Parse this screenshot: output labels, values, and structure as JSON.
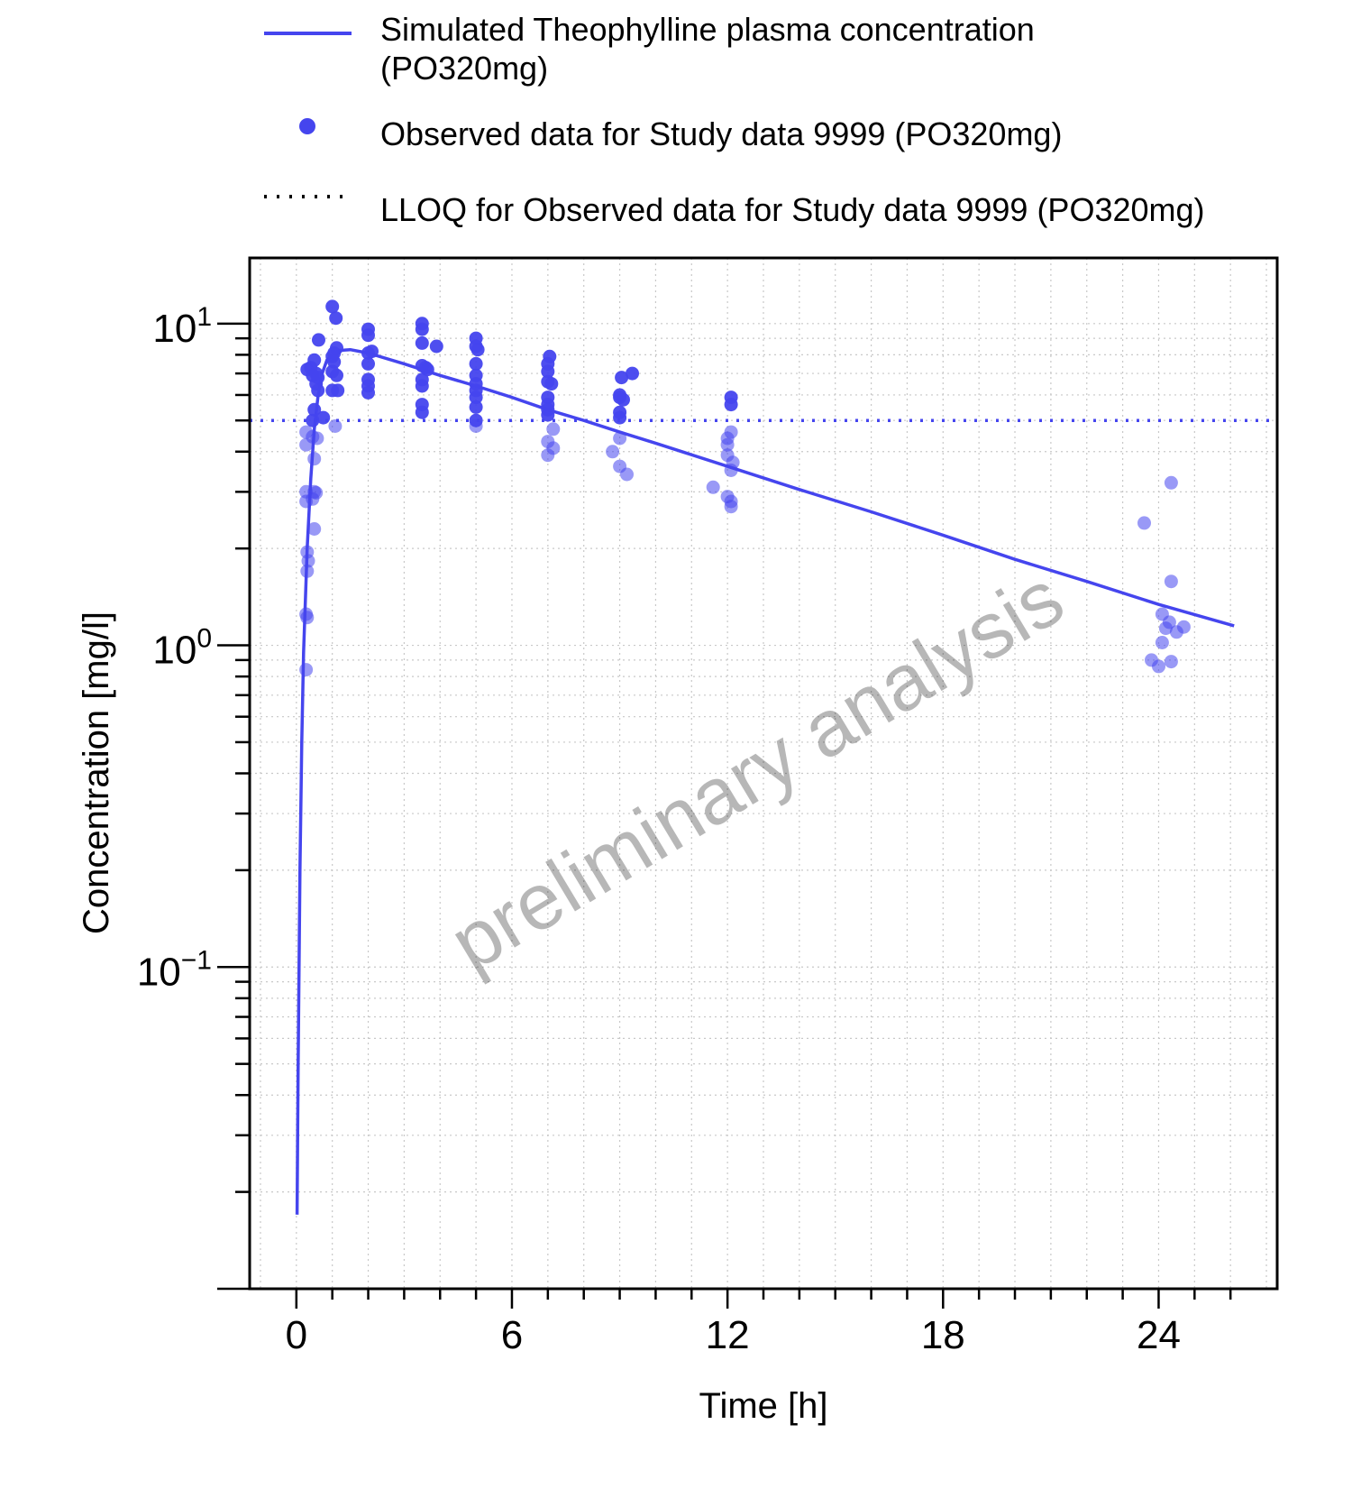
{
  "chart_data": {
    "type": "scatter",
    "title": "",
    "xlabel": "Time [h]",
    "ylabel": "Concentration [mg/l]",
    "xlim": [
      -1.3,
      27.3
    ],
    "ylim": [
      0.01,
      16
    ],
    "y_scale": "log",
    "x_ticks": [
      0,
      6,
      12,
      18,
      24
    ],
    "x_tick_labels": [
      "0",
      "6",
      "12",
      "18",
      "24"
    ],
    "y_ticks": [
      {
        "value": 10,
        "base": "10",
        "exp": "1"
      },
      {
        "value": 1,
        "base": "10",
        "exp": "0"
      },
      {
        "value": 0.1,
        "base": "10",
        "exp": "−1"
      }
    ],
    "grid": true,
    "legend_position": "top",
    "watermark": "preliminary analysis",
    "colors": {
      "series": "#4545ee",
      "axis": "#000000",
      "grid": "#c8c8c8"
    },
    "series": [
      {
        "name": "Simulated Theophylline plasma concentration\n(PO320mg)",
        "kind": "line",
        "legend_lines": [
          "Simulated Theophylline plasma concentration",
          "(PO320mg)"
        ],
        "points": [
          [
            0.02,
            0.017
          ],
          [
            0.05,
            0.05
          ],
          [
            0.1,
            0.2
          ],
          [
            0.15,
            0.5
          ],
          [
            0.2,
            0.95
          ],
          [
            0.3,
            2.0
          ],
          [
            0.4,
            3.3
          ],
          [
            0.5,
            4.7
          ],
          [
            0.6,
            5.9
          ],
          [
            0.7,
            6.9
          ],
          [
            0.85,
            7.7
          ],
          [
            1.0,
            8.0
          ],
          [
            1.2,
            8.25
          ],
          [
            1.5,
            8.3
          ],
          [
            2,
            8.1
          ],
          [
            3,
            7.5
          ],
          [
            4,
            6.9
          ],
          [
            5,
            6.4
          ],
          [
            6,
            5.9
          ],
          [
            7,
            5.4
          ],
          [
            8,
            5.0
          ],
          [
            9,
            4.6
          ],
          [
            10,
            4.25
          ],
          [
            12,
            3.6
          ],
          [
            14,
            3.05
          ],
          [
            16,
            2.6
          ],
          [
            18,
            2.2
          ],
          [
            20,
            1.85
          ],
          [
            22,
            1.58
          ],
          [
            24,
            1.34
          ],
          [
            26.1,
            1.15
          ]
        ]
      },
      {
        "name": "Observed data for Study data 9999 (PO320mg)",
        "kind": "points",
        "points": [
          [
            0.27,
            4.6
          ],
          [
            0.27,
            4.2
          ],
          [
            0.27,
            3.0
          ],
          [
            0.27,
            2.8
          ],
          [
            0.3,
            1.95
          ],
          [
            0.3,
            1.7
          ],
          [
            0.27,
            1.25
          ],
          [
            0.27,
            0.84
          ],
          [
            0.33,
            1.83
          ],
          [
            0.3,
            1.22
          ],
          [
            0.3,
            7.2
          ],
          [
            0.4,
            7.3
          ],
          [
            0.45,
            5.0
          ],
          [
            0.45,
            2.85
          ],
          [
            0.45,
            4.45
          ],
          [
            0.45,
            6.9
          ],
          [
            0.5,
            3.0
          ],
          [
            0.5,
            2.3
          ],
          [
            0.5,
            3.8
          ],
          [
            0.5,
            5.4
          ],
          [
            0.5,
            7.7
          ],
          [
            0.55,
            7.0
          ],
          [
            0.55,
            6.5
          ],
          [
            0.55,
            2.98
          ],
          [
            0.58,
            4.4
          ],
          [
            0.6,
            6.2
          ],
          [
            0.6,
            6.8
          ],
          [
            0.62,
            8.9
          ],
          [
            0.75,
            5.1
          ],
          [
            1.0,
            11.3
          ],
          [
            1.0,
            7.9
          ],
          [
            1.0,
            7.1
          ],
          [
            1.0,
            6.2
          ],
          [
            1.05,
            8.1
          ],
          [
            1.05,
            7.6
          ],
          [
            1.08,
            4.8
          ],
          [
            1.1,
            10.4
          ],
          [
            1.12,
            6.9
          ],
          [
            1.12,
            8.4
          ],
          [
            1.15,
            6.2
          ],
          [
            2.0,
            9.6
          ],
          [
            2.0,
            9.2
          ],
          [
            2.0,
            8.1
          ],
          [
            2.0,
            7.5
          ],
          [
            2.0,
            6.7
          ],
          [
            2.0,
            6.4
          ],
          [
            2.0,
            6.1
          ],
          [
            2.1,
            8.2
          ],
          [
            3.5,
            10.0
          ],
          [
            3.5,
            9.6
          ],
          [
            3.5,
            8.7
          ],
          [
            3.5,
            7.4
          ],
          [
            3.5,
            6.7
          ],
          [
            3.5,
            6.4
          ],
          [
            3.5,
            5.6
          ],
          [
            3.5,
            5.3
          ],
          [
            3.6,
            7.3
          ],
          [
            3.65,
            7.2
          ],
          [
            3.9,
            8.5
          ],
          [
            5.0,
            9.0
          ],
          [
            5.0,
            8.5
          ],
          [
            5.0,
            7.5
          ],
          [
            5.0,
            6.9
          ],
          [
            5.0,
            6.5
          ],
          [
            5.0,
            6.2
          ],
          [
            5.0,
            5.9
          ],
          [
            5.0,
            5.5
          ],
          [
            5.0,
            5.0
          ],
          [
            5.0,
            4.8
          ],
          [
            5.05,
            8.3
          ],
          [
            7.0,
            7.5
          ],
          [
            7.0,
            7.1
          ],
          [
            7.0,
            6.6
          ],
          [
            7.0,
            5.9
          ],
          [
            7.0,
            5.6
          ],
          [
            7.0,
            5.4
          ],
          [
            7.0,
            5.2
          ],
          [
            7.0,
            4.3
          ],
          [
            7.0,
            3.9
          ],
          [
            7.05,
            7.9
          ],
          [
            7.1,
            6.5
          ],
          [
            7.15,
            4.7
          ],
          [
            7.15,
            4.1
          ],
          [
            8.8,
            4.0
          ],
          [
            9.0,
            6.0
          ],
          [
            9.0,
            5.9
          ],
          [
            9.0,
            5.3
          ],
          [
            9.0,
            5.1
          ],
          [
            9.0,
            4.4
          ],
          [
            9.0,
            3.6
          ],
          [
            9.05,
            6.8
          ],
          [
            9.1,
            5.8
          ],
          [
            9.2,
            3.4
          ],
          [
            9.35,
            7.0
          ],
          [
            11.6,
            3.1
          ],
          [
            12.0,
            4.4
          ],
          [
            12.0,
            4.2
          ],
          [
            12.0,
            3.9
          ],
          [
            12.0,
            2.9
          ],
          [
            12.1,
            5.9
          ],
          [
            12.1,
            5.6
          ],
          [
            12.1,
            4.6
          ],
          [
            12.1,
            3.5
          ],
          [
            12.1,
            2.8
          ],
          [
            12.1,
            2.7
          ],
          [
            12.15,
            3.7
          ],
          [
            23.6,
            2.4
          ],
          [
            23.8,
            0.9
          ],
          [
            24.0,
            0.86
          ],
          [
            24.1,
            1.25
          ],
          [
            24.1,
            1.02
          ],
          [
            24.2,
            1.13
          ],
          [
            24.3,
            1.18
          ],
          [
            24.35,
            3.2
          ],
          [
            24.35,
            1.58
          ],
          [
            24.35,
            0.89
          ],
          [
            24.5,
            1.1
          ],
          [
            24.7,
            1.14
          ]
        ]
      },
      {
        "name": "LLOQ for Observed data for Study data 9999 (PO320mg)",
        "kind": "hline",
        "value": 5.0
      }
    ]
  }
}
